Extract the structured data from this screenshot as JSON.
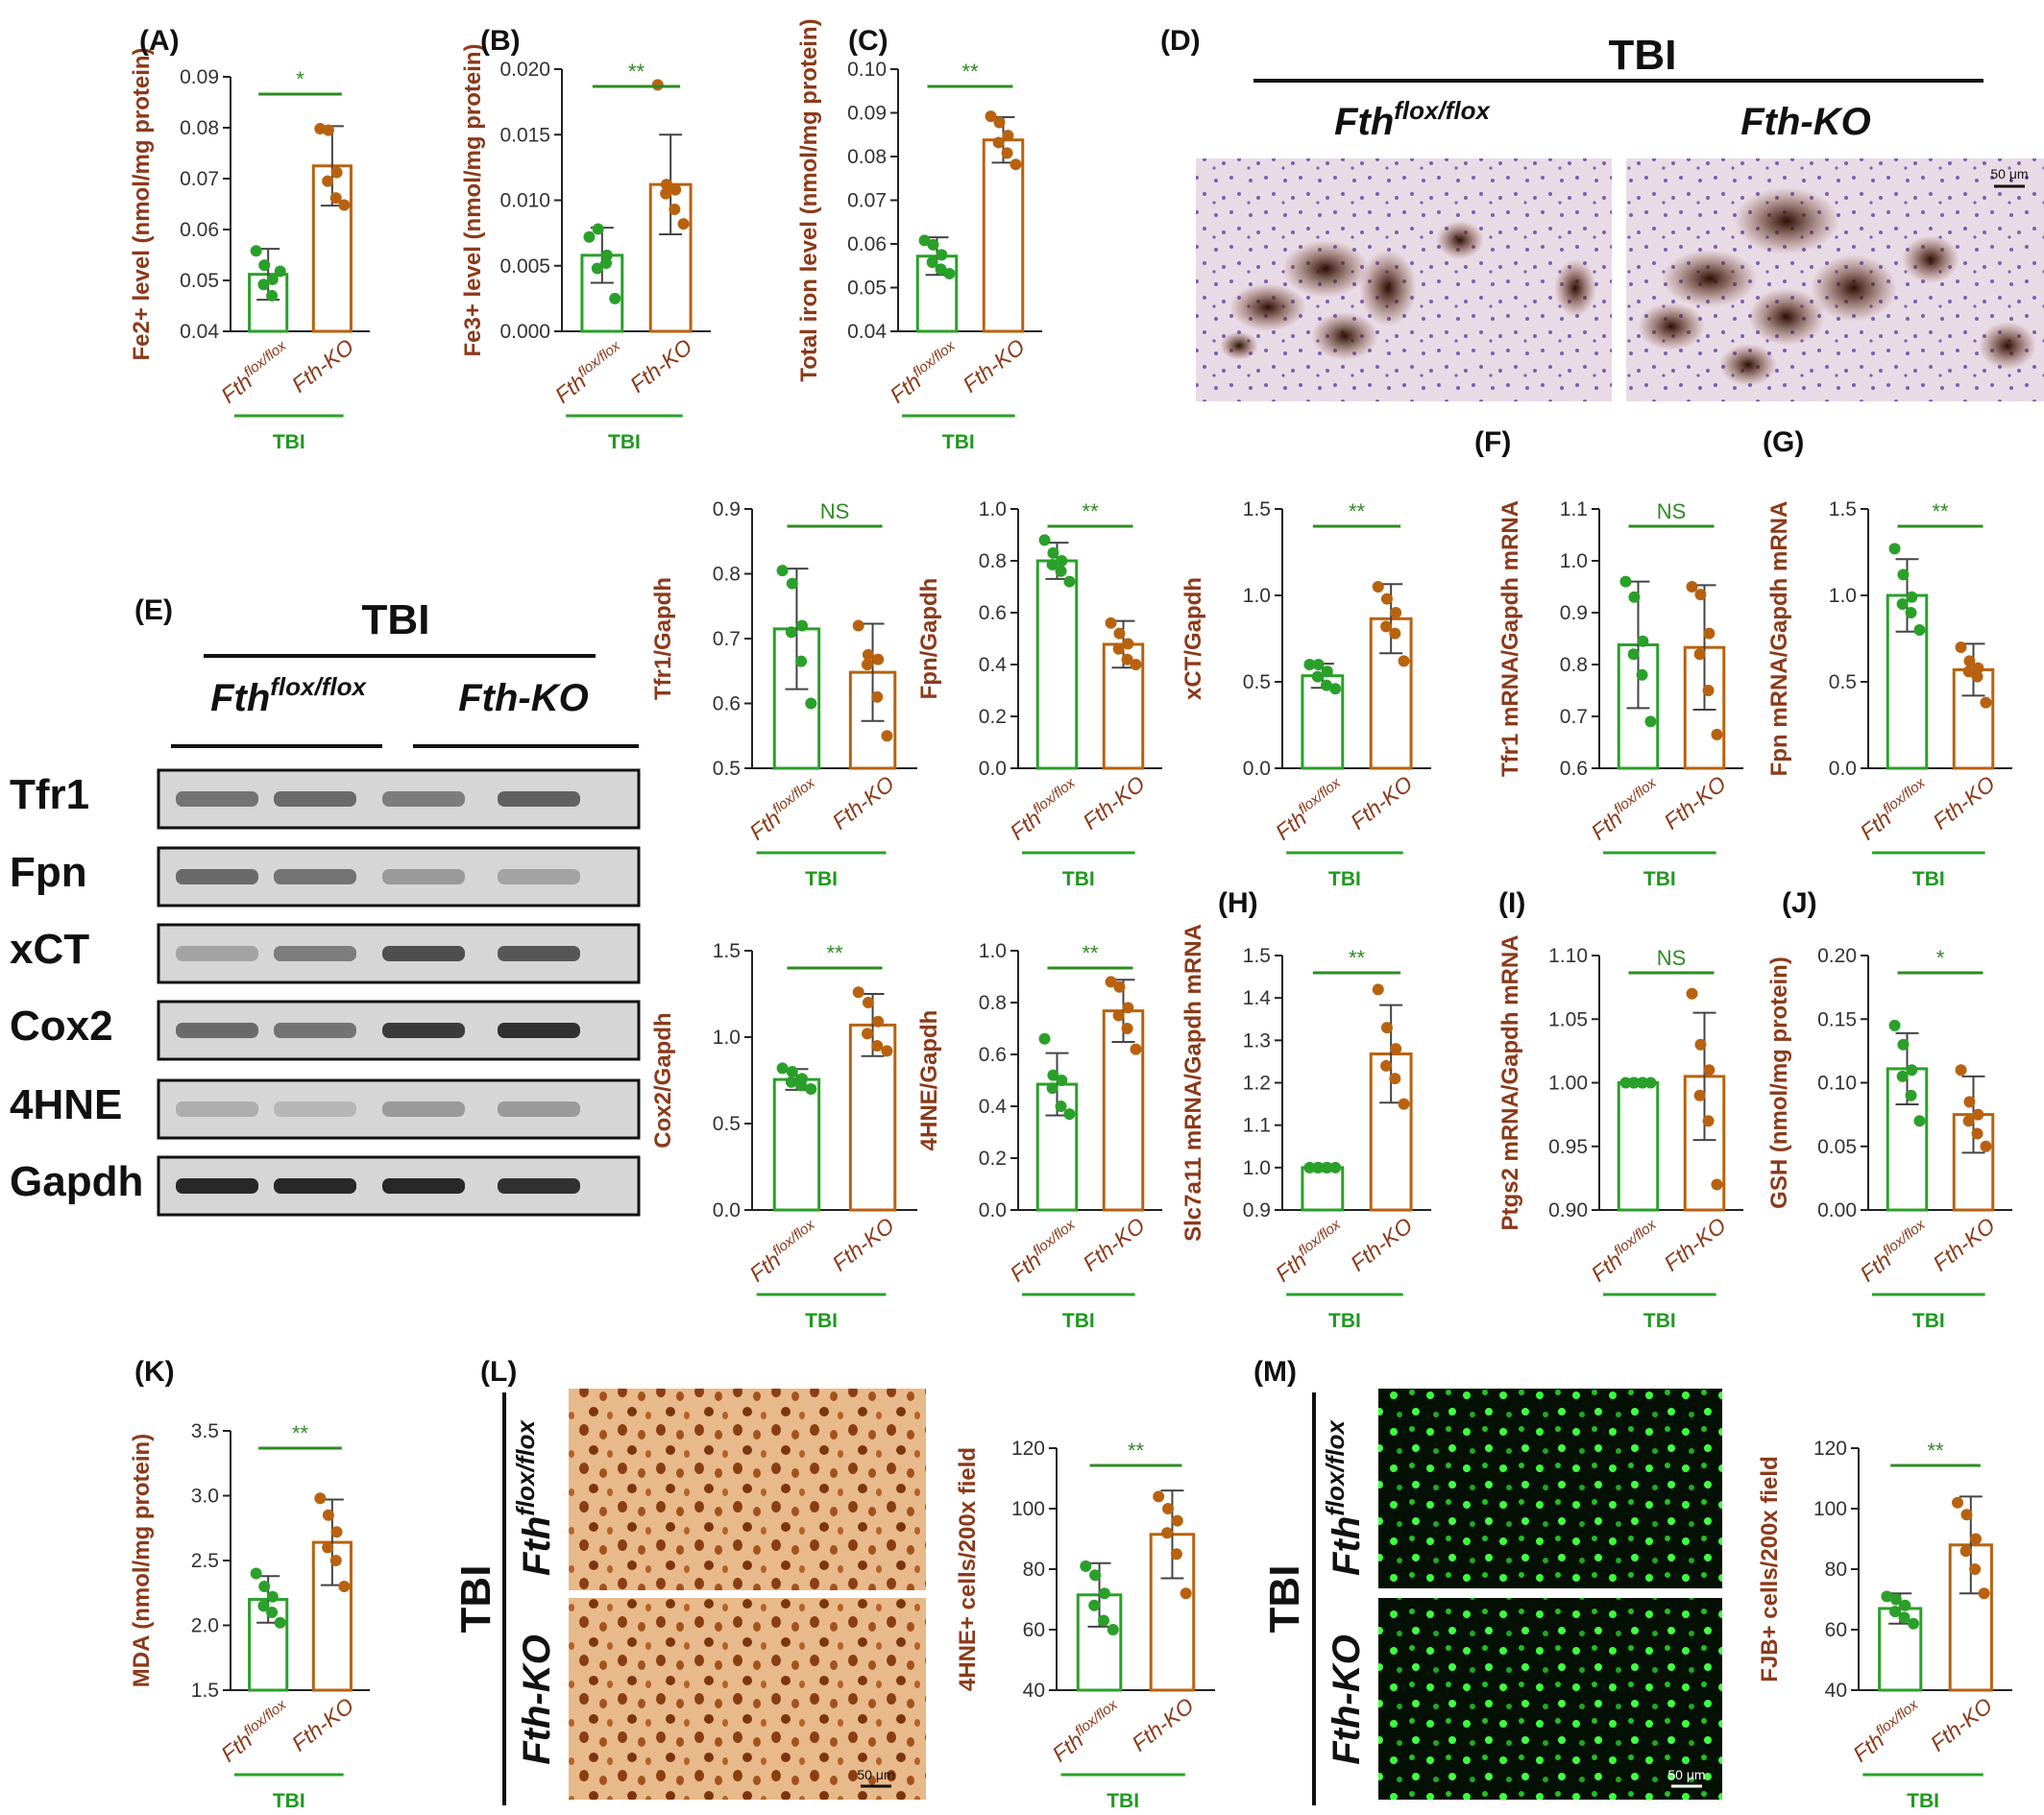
{
  "figure": {
    "colors": {
      "ctrl": "#2aa02a",
      "ko": "#b8620f",
      "label": "#8b3a1a",
      "sig": "#2e8b22"
    },
    "group_label": "TBI",
    "genotype_flox": "Fth",
    "genotype_flox_sup": "flox/flox",
    "genotype_ko": "Fth-KO",
    "panel_D": {
      "label": "(D)",
      "group": "TBI",
      "flox": "Fth",
      "flox_sup": "flox/flox",
      "ko": "Fth-KO",
      "scale": "50 μm"
    },
    "panel_E": {
      "label": "(E)",
      "group": "TBI",
      "flox": "Fth",
      "flox_sup": "flox/flox",
      "ko": "Fth-KO",
      "bands": [
        "Tfr1",
        "Fpn",
        "xCT",
        "Cox2",
        "4HNE",
        "Gapdh"
      ],
      "band_intensity": [
        [
          0.55,
          0.6,
          0.5,
          0.65
        ],
        [
          0.6,
          0.55,
          0.35,
          0.3
        ],
        [
          0.3,
          0.5,
          0.75,
          0.7
        ],
        [
          0.6,
          0.55,
          0.85,
          0.9
        ],
        [
          0.25,
          0.2,
          0.35,
          0.35
        ],
        [
          0.95,
          0.95,
          0.95,
          0.9
        ]
      ]
    },
    "panel_L": {
      "label": "(L)",
      "group": "TBI",
      "flox": "Fth",
      "flox_sup": "flox/flox",
      "ko": "Fth-KO",
      "scale": "50 μm"
    },
    "panel_M": {
      "label": "(M)",
      "group": "TBI",
      "flox": "Fth",
      "flox_sup": "flox/flox",
      "ko": "Fth-KO",
      "scale": "50 μm"
    }
  },
  "chart_data": [
    {
      "label": "(A)",
      "type": "bar",
      "ylabel": "Fe2+ level (nmol/mg protein)",
      "ylim": [
        0.04,
        0.09
      ],
      "yticks": [
        "0.04",
        "0.05",
        "0.06",
        "0.07",
        "0.08",
        "0.09"
      ],
      "categories": [
        "Fth flox/flox",
        "Fth-KO"
      ],
      "means": [
        0.0512,
        0.0725
      ],
      "sd": [
        0.005,
        0.0078
      ],
      "points": [
        [
          0.0558,
          0.053,
          0.0502,
          0.0492,
          0.047,
          0.0518
        ],
        [
          0.0798,
          0.0795,
          0.0712,
          0.0695,
          0.0662,
          0.0648
        ]
      ],
      "significance": "*",
      "group": "TBI"
    },
    {
      "label": "(B)",
      "type": "bar",
      "ylabel": "Fe3+ level (nmol/mg protein)",
      "ylim": [
        0.0,
        0.02
      ],
      "yticks": [
        "0.000",
        "0.005",
        "0.010",
        "0.015",
        "0.020"
      ],
      "categories": [
        "Fth flox/flox",
        "Fth-KO"
      ],
      "means": [
        0.0058,
        0.0112
      ],
      "sd": [
        0.0021,
        0.0038
      ],
      "points": [
        [
          0.0072,
          0.0078,
          0.0058,
          0.0048,
          0.0052,
          0.0025
        ],
        [
          0.0188,
          0.0112,
          0.0108,
          0.0105,
          0.0093,
          0.0082
        ]
      ],
      "significance": "**",
      "group": "TBI"
    },
    {
      "label": "(C)",
      "type": "bar",
      "ylabel": "Total iron level (nmol/mg protein)",
      "ylim": [
        0.04,
        0.1
      ],
      "yticks": [
        "0.04",
        "0.05",
        "0.06",
        "0.07",
        "0.08",
        "0.09",
        "0.10"
      ],
      "categories": [
        "Fth flox/flox",
        "Fth-KO"
      ],
      "means": [
        0.0572,
        0.0838
      ],
      "sd": [
        0.0043,
        0.0052
      ],
      "points": [
        [
          0.0608,
          0.0598,
          0.0575,
          0.0558,
          0.0542,
          0.0532
        ],
        [
          0.0892,
          0.0878,
          0.0848,
          0.0832,
          0.0808,
          0.0782
        ]
      ],
      "significance": "**",
      "group": "TBI"
    },
    {
      "label": "",
      "type": "bar",
      "ylabel": "Tfr1/Gapdh",
      "ylim": [
        0.5,
        0.9
      ],
      "yticks": [
        "0.5",
        "0.6",
        "0.7",
        "0.8",
        "0.9"
      ],
      "categories": [
        "Fth flox/flox",
        "Fth-KO"
      ],
      "means": [
        0.715,
        0.648
      ],
      "sd": [
        0.093,
        0.075
      ],
      "points": [
        [
          0.805,
          0.785,
          0.72,
          0.71,
          0.665,
          0.6
        ],
        [
          0.72,
          0.675,
          0.668,
          0.66,
          0.61,
          0.55
        ]
      ],
      "significance": "NS",
      "group": "TBI"
    },
    {
      "label": "",
      "type": "bar",
      "ylabel": "Fpn/Gapdh",
      "ylim": [
        0.0,
        1.0
      ],
      "yticks": [
        "0.0",
        "0.2",
        "0.4",
        "0.6",
        "0.8",
        "1.0"
      ],
      "categories": [
        "Fth flox/flox",
        "Fth-KO"
      ],
      "means": [
        0.8,
        0.478
      ],
      "sd": [
        0.07,
        0.09
      ],
      "points": [
        [
          0.88,
          0.83,
          0.8,
          0.785,
          0.76,
          0.72
        ],
        [
          0.56,
          0.52,
          0.48,
          0.46,
          0.42,
          0.4
        ]
      ],
      "significance": "**",
      "group": "TBI"
    },
    {
      "label": "",
      "type": "bar",
      "ylabel": "xCT/Gapdh",
      "ylim": [
        0.0,
        1.5
      ],
      "yticks": [
        "0.0",
        "0.5",
        "1.0",
        "1.5"
      ],
      "categories": [
        "Fth flox/flox",
        "Fth-KO"
      ],
      "means": [
        0.535,
        0.865
      ],
      "sd": [
        0.07,
        0.2
      ],
      "points": [
        [
          0.6,
          0.6,
          0.56,
          0.53,
          0.48,
          0.46
        ],
        [
          1.05,
          0.98,
          0.9,
          0.82,
          0.78,
          0.62
        ]
      ],
      "significance": "**",
      "group": "TBI"
    },
    {
      "label": "(F)",
      "type": "bar",
      "ylabel": "Tfr1 mRNA/Gapdh mRNA",
      "ylim": [
        0.6,
        1.1
      ],
      "yticks": [
        "0.6",
        "0.7",
        "0.8",
        "0.9",
        "1.0",
        "1.1"
      ],
      "categories": [
        "Fth flox/flox",
        "Fth-KO"
      ],
      "means": [
        0.838,
        0.833
      ],
      "sd": [
        0.122,
        0.12
      ],
      "points": [
        [
          0.96,
          0.93,
          0.845,
          0.82,
          0.78,
          0.69
        ],
        [
          0.95,
          0.935,
          0.86,
          0.82,
          0.75,
          0.665
        ]
      ],
      "significance": "NS",
      "group": "TBI"
    },
    {
      "label": "(G)",
      "type": "bar",
      "ylabel": "Fpn mRNA/Gapdh mRNA",
      "ylim": [
        0.0,
        1.5
      ],
      "yticks": [
        "0.0",
        "0.5",
        "1.0",
        "1.5"
      ],
      "categories": [
        "Fth flox/flox",
        "Fth-KO"
      ],
      "means": [
        1.0,
        0.57
      ],
      "sd": [
        0.21,
        0.15
      ],
      "points": [
        [
          1.27,
          1.12,
          0.99,
          0.95,
          0.9,
          0.8
        ],
        [
          0.7,
          0.62,
          0.58,
          0.56,
          0.53,
          0.38
        ]
      ],
      "significance": "**",
      "group": "TBI"
    },
    {
      "label": "",
      "type": "bar",
      "ylabel": "Cox2/Gapdh",
      "ylim": [
        0.0,
        1.5
      ],
      "yticks": [
        "0.0",
        "0.5",
        "1.0",
        "1.5"
      ],
      "categories": [
        "Fth flox/flox",
        "Fth-KO"
      ],
      "means": [
        0.755,
        1.07
      ],
      "sd": [
        0.06,
        0.18
      ],
      "points": [
        [
          0.82,
          0.8,
          0.76,
          0.74,
          0.72,
          0.7
        ],
        [
          1.26,
          1.2,
          1.09,
          1.02,
          0.95,
          0.92
        ]
      ],
      "significance": "**",
      "group": "TBI"
    },
    {
      "label": "",
      "type": "bar",
      "ylabel": "4HNE/Gapdh",
      "ylim": [
        0.0,
        1.0
      ],
      "yticks": [
        "0.0",
        "0.2",
        "0.4",
        "0.6",
        "0.8",
        "1.0"
      ],
      "categories": [
        "Fth flox/flox",
        "Fth-KO"
      ],
      "means": [
        0.485,
        0.768
      ],
      "sd": [
        0.12,
        0.12
      ],
      "points": [
        [
          0.66,
          0.52,
          0.5,
          0.47,
          0.4,
          0.37
        ],
        [
          0.88,
          0.86,
          0.78,
          0.75,
          0.7,
          0.62
        ]
      ],
      "significance": "**",
      "group": "TBI"
    },
    {
      "label": "(H)",
      "type": "bar",
      "ylabel": "Slc7a11 mRNA/Gapdh mRNA",
      "ylim": [
        0.9,
        1.5
      ],
      "yticks": [
        "0.9",
        "1.0",
        "1.1",
        "1.2",
        "1.3",
        "1.4",
        "1.5"
      ],
      "categories": [
        "Fth flox/flox",
        "Fth-KO"
      ],
      "means": [
        1.0,
        1.268
      ],
      "sd": [
        0.0,
        0.115
      ],
      "points": [
        [
          1.0,
          1.0,
          1.0,
          1.0,
          1.0,
          1.0
        ],
        [
          1.42,
          1.33,
          1.28,
          1.24,
          1.21,
          1.15
        ]
      ],
      "significance": "**",
      "group": "TBI"
    },
    {
      "label": "(I)",
      "type": "bar",
      "ylabel": "Ptgs2 mRNA/Gapdh mRNA",
      "ylim": [
        0.9,
        1.1
      ],
      "yticks": [
        "0.90",
        "0.95",
        "1.00",
        "1.05",
        "1.10"
      ],
      "categories": [
        "Fth flox/flox",
        "Fth-KO"
      ],
      "means": [
        1.0,
        1.005
      ],
      "sd": [
        0.0,
        0.05
      ],
      "points": [
        [
          1.0,
          1.0,
          1.0,
          1.0,
          1.0,
          1.0
        ],
        [
          1.07,
          1.03,
          1.01,
          0.99,
          0.97,
          0.92
        ]
      ],
      "significance": "NS",
      "group": "TBI"
    },
    {
      "label": "(J)",
      "type": "bar",
      "ylabel": "GSH (nmol/mg protein)",
      "ylim": [
        0.0,
        0.2
      ],
      "yticks": [
        "0.00",
        "0.05",
        "0.10",
        "0.15",
        "0.20"
      ],
      "categories": [
        "Fth flox/flox",
        "Fth-KO"
      ],
      "means": [
        0.111,
        0.075
      ],
      "sd": [
        0.028,
        0.03
      ],
      "points": [
        [
          0.145,
          0.13,
          0.11,
          0.105,
          0.09,
          0.07
        ],
        [
          0.11,
          0.085,
          0.075,
          0.07,
          0.06,
          0.05
        ]
      ],
      "significance": "*",
      "group": "TBI"
    },
    {
      "label": "(K)",
      "type": "bar",
      "ylabel": "MDA (nmol/mg protein)",
      "ylim": [
        1.5,
        3.5
      ],
      "yticks": [
        "1.5",
        "2.0",
        "2.5",
        "3.0",
        "3.5"
      ],
      "categories": [
        "Fth flox/flox",
        "Fth-KO"
      ],
      "means": [
        2.2,
        2.64
      ],
      "sd": [
        0.18,
        0.33
      ],
      "points": [
        [
          2.4,
          2.3,
          2.22,
          2.15,
          2.1,
          2.02
        ],
        [
          2.98,
          2.85,
          2.72,
          2.6,
          2.5,
          2.3
        ]
      ],
      "significance": "**",
      "group": "TBI"
    },
    {
      "label": "",
      "type": "bar",
      "ylabel": "4HNE+ cells/200x field",
      "ylim": [
        40,
        120
      ],
      "yticks": [
        "40",
        "60",
        "80",
        "100",
        "120"
      ],
      "categories": [
        "Fth flox/flox",
        "Fth-KO"
      ],
      "means": [
        71.5,
        91.5
      ],
      "sd": [
        10.5,
        14.5
      ],
      "points": [
        [
          81,
          78,
          72,
          68,
          63,
          60
        ],
        [
          104,
          100,
          96,
          92,
          85,
          72
        ]
      ],
      "significance": "**",
      "group": "TBI"
    },
    {
      "label": "",
      "type": "bar",
      "ylabel": "FJB+ cells/200x field",
      "ylim": [
        40,
        120
      ],
      "yticks": [
        "40",
        "60",
        "80",
        "100",
        "120"
      ],
      "categories": [
        "Fth flox/flox",
        "Fth-KO"
      ],
      "means": [
        67,
        88
      ],
      "sd": [
        5,
        16
      ],
      "points": [
        [
          71,
          70,
          68,
          66,
          64,
          62
        ],
        [
          102,
          98,
          90,
          86,
          80,
          72
        ]
      ],
      "significance": "**",
      "group": "TBI"
    }
  ]
}
